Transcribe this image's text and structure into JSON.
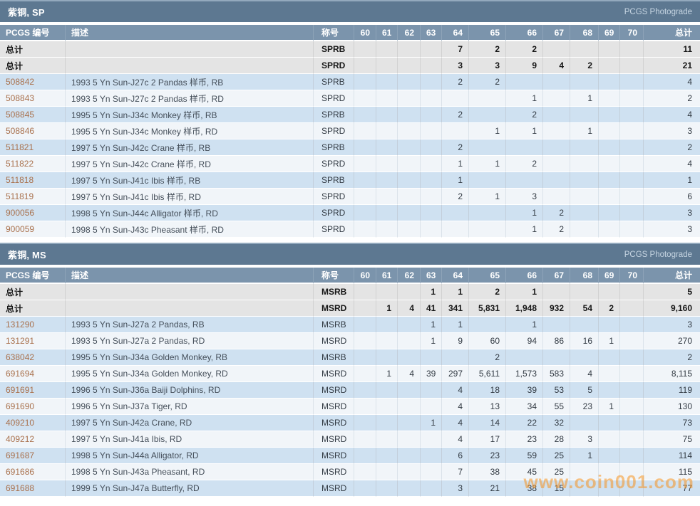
{
  "page": {
    "watermark": "www.coin001.com"
  },
  "colors": {
    "section_bar": "#5d7891",
    "column_header": "#7b94ac",
    "row_blue": "#cfe1f1",
    "row_light": "#f1f5f9",
    "row_total": "#e4e4e4",
    "pcgs_link": "#a9714d",
    "watermark_orange": "#f69420"
  },
  "columns": [
    "PCGS 编号",
    "描述",
    "称号",
    "60",
    "61",
    "62",
    "63",
    "64",
    "65",
    "66",
    "67",
    "68",
    "69",
    "70",
    "总计"
  ],
  "sections": [
    {
      "title": "紫铜, SP",
      "photograde": "PCGS Photograde",
      "rows": [
        {
          "pcgs": "总计",
          "desc": "",
          "desig": "SPRB",
          "grades": [
            "",
            "",
            "",
            "",
            "7",
            "2",
            "2",
            "",
            "",
            "",
            ""
          ],
          "total": "11",
          "is_total": true
        },
        {
          "pcgs": "总计",
          "desc": "",
          "desig": "SPRD",
          "grades": [
            "",
            "",
            "",
            "",
            "3",
            "3",
            "9",
            "4",
            "2",
            "",
            ""
          ],
          "total": "21",
          "is_total": true
        },
        {
          "pcgs": "508842",
          "desc": "1993 5 Yn Sun-J27c 2 Pandas 样币, RB",
          "desig": "SPRB",
          "grades": [
            "",
            "",
            "",
            "",
            "2",
            "2",
            "",
            "",
            "",
            "",
            ""
          ],
          "total": "4",
          "is_total": false
        },
        {
          "pcgs": "508843",
          "desc": "1993 5 Yn Sun-J27c 2 Pandas 样币, RD",
          "desig": "SPRD",
          "grades": [
            "",
            "",
            "",
            "",
            "",
            "",
            "1",
            "",
            "1",
            "",
            ""
          ],
          "total": "2",
          "is_total": false
        },
        {
          "pcgs": "508845",
          "desc": "1995 5 Yn Sun-J34c Monkey 样币, RB",
          "desig": "SPRB",
          "grades": [
            "",
            "",
            "",
            "",
            "2",
            "",
            "2",
            "",
            "",
            "",
            ""
          ],
          "total": "4",
          "is_total": false
        },
        {
          "pcgs": "508846",
          "desc": "1995 5 Yn Sun-J34c Monkey 样币, RD",
          "desig": "SPRD",
          "grades": [
            "",
            "",
            "",
            "",
            "",
            "1",
            "1",
            "",
            "1",
            "",
            ""
          ],
          "total": "3",
          "is_total": false
        },
        {
          "pcgs": "511821",
          "desc": "1997 5 Yn Sun-J42c Crane 样币, RB",
          "desig": "SPRB",
          "grades": [
            "",
            "",
            "",
            "",
            "2",
            "",
            "",
            "",
            "",
            "",
            ""
          ],
          "total": "2",
          "is_total": false
        },
        {
          "pcgs": "511822",
          "desc": "1997 5 Yn Sun-J42c Crane 样币, RD",
          "desig": "SPRD",
          "grades": [
            "",
            "",
            "",
            "",
            "1",
            "1",
            "2",
            "",
            "",
            "",
            ""
          ],
          "total": "4",
          "is_total": false
        },
        {
          "pcgs": "511818",
          "desc": "1997 5 Yn Sun-J41c Ibis 样币, RB",
          "desig": "SPRB",
          "grades": [
            "",
            "",
            "",
            "",
            "1",
            "",
            "",
            "",
            "",
            "",
            ""
          ],
          "total": "1",
          "is_total": false
        },
        {
          "pcgs": "511819",
          "desc": "1997 5 Yn Sun-J41c Ibis 样币, RD",
          "desig": "SPRD",
          "grades": [
            "",
            "",
            "",
            "",
            "2",
            "1",
            "3",
            "",
            "",
            "",
            ""
          ],
          "total": "6",
          "is_total": false
        },
        {
          "pcgs": "900056",
          "desc": "1998 5 Yn Sun-J44c Alligator 样币, RD",
          "desig": "SPRD",
          "grades": [
            "",
            "",
            "",
            "",
            "",
            "",
            "1",
            "2",
            "",
            "",
            ""
          ],
          "total": "3",
          "is_total": false
        },
        {
          "pcgs": "900059",
          "desc": "1998 5 Yn Sun-J43c Pheasant 样币, RD",
          "desig": "SPRD",
          "grades": [
            "",
            "",
            "",
            "",
            "",
            "",
            "1",
            "2",
            "",
            "",
            ""
          ],
          "total": "3",
          "is_total": false
        }
      ]
    },
    {
      "title": "紫铜, MS",
      "photograde": "PCGS Photograde",
      "rows": [
        {
          "pcgs": "总计",
          "desc": "",
          "desig": "MSRB",
          "grades": [
            "",
            "",
            "",
            "1",
            "1",
            "2",
            "1",
            "",
            "",
            "",
            ""
          ],
          "total": "5",
          "is_total": true
        },
        {
          "pcgs": "总计",
          "desc": "",
          "desig": "MSRD",
          "grades": [
            "",
            "1",
            "4",
            "41",
            "341",
            "5,831",
            "1,948",
            "932",
            "54",
            "2",
            ""
          ],
          "total": "9,160",
          "is_total": true
        },
        {
          "pcgs": "131290",
          "desc": "1993 5 Yn Sun-J27a 2 Pandas, RB",
          "desig": "MSRB",
          "grades": [
            "",
            "",
            "",
            "1",
            "1",
            "",
            "1",
            "",
            "",
            "",
            ""
          ],
          "total": "3",
          "is_total": false
        },
        {
          "pcgs": "131291",
          "desc": "1993 5 Yn Sun-J27a 2 Pandas, RD",
          "desig": "MSRD",
          "grades": [
            "",
            "",
            "",
            "1",
            "9",
            "60",
            "94",
            "86",
            "16",
            "1",
            ""
          ],
          "total": "270",
          "is_total": false
        },
        {
          "pcgs": "638042",
          "desc": "1995 5 Yn Sun-J34a Golden Monkey, RB",
          "desig": "MSRB",
          "grades": [
            "",
            "",
            "",
            "",
            "",
            "2",
            "",
            "",
            "",
            "",
            ""
          ],
          "total": "2",
          "is_total": false
        },
        {
          "pcgs": "691694",
          "desc": "1995 5 Yn Sun-J34a Golden Monkey, RD",
          "desig": "MSRD",
          "grades": [
            "",
            "1",
            "4",
            "39",
            "297",
            "5,611",
            "1,573",
            "583",
            "4",
            "",
            ""
          ],
          "total": "8,115",
          "is_total": false
        },
        {
          "pcgs": "691691",
          "desc": "1996 5 Yn Sun-J36a Baiji Dolphins, RD",
          "desig": "MSRD",
          "grades": [
            "",
            "",
            "",
            "",
            "4",
            "18",
            "39",
            "53",
            "5",
            "",
            ""
          ],
          "total": "119",
          "is_total": false
        },
        {
          "pcgs": "691690",
          "desc": "1996 5 Yn Sun-J37a Tiger, RD",
          "desig": "MSRD",
          "grades": [
            "",
            "",
            "",
            "",
            "4",
            "13",
            "34",
            "55",
            "23",
            "1",
            ""
          ],
          "total": "130",
          "is_total": false
        },
        {
          "pcgs": "409210",
          "desc": "1997 5 Yn Sun-J42a Crane, RD",
          "desig": "MSRD",
          "grades": [
            "",
            "",
            "",
            "1",
            "4",
            "14",
            "22",
            "32",
            "",
            "",
            ""
          ],
          "total": "73",
          "is_total": false
        },
        {
          "pcgs": "409212",
          "desc": "1997 5 Yn Sun-J41a Ibis, RD",
          "desig": "MSRD",
          "grades": [
            "",
            "",
            "",
            "",
            "4",
            "17",
            "23",
            "28",
            "3",
            "",
            ""
          ],
          "total": "75",
          "is_total": false
        },
        {
          "pcgs": "691687",
          "desc": "1998 5 Yn Sun-J44a Alligator, RD",
          "desig": "MSRD",
          "grades": [
            "",
            "",
            "",
            "",
            "6",
            "23",
            "59",
            "25",
            "1",
            "",
            ""
          ],
          "total": "114",
          "is_total": false
        },
        {
          "pcgs": "691686",
          "desc": "1998 5 Yn Sun-J43a Pheasant, RD",
          "desig": "MSRD",
          "grades": [
            "",
            "",
            "",
            "",
            "7",
            "38",
            "45",
            "25",
            "",
            "",
            ""
          ],
          "total": "115",
          "is_total": false
        },
        {
          "pcgs": "691688",
          "desc": "1999 5 Yn Sun-J47a Butterfly, RD",
          "desig": "MSRD",
          "grades": [
            "",
            "",
            "",
            "",
            "3",
            "21",
            "38",
            "15",
            "",
            "",
            ""
          ],
          "total": "77",
          "is_total": false
        }
      ]
    }
  ]
}
